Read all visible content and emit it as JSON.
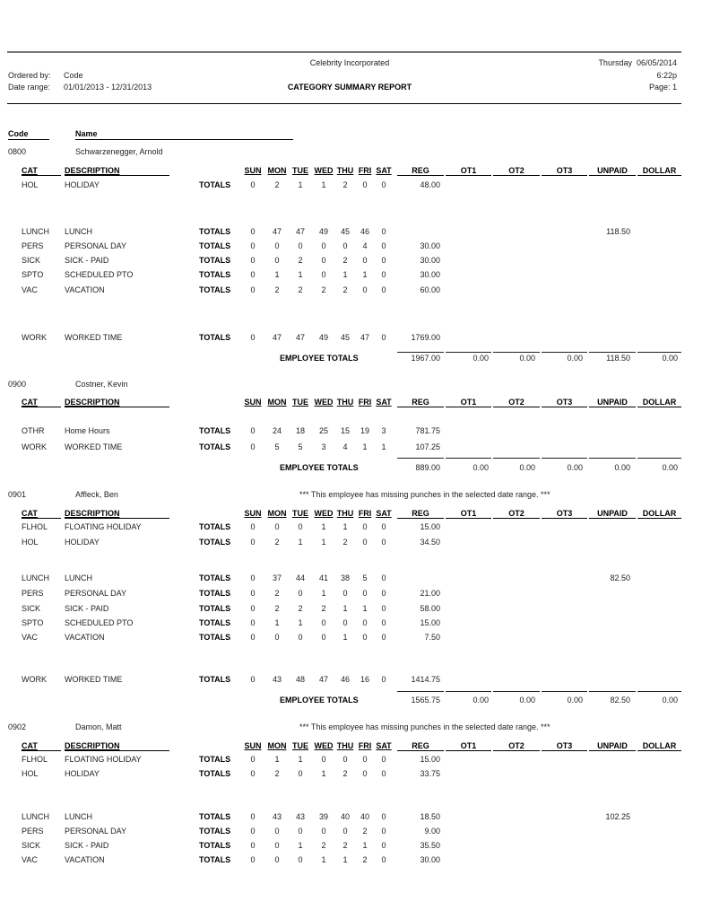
{
  "header": {
    "company": "Celebrity Incorporated",
    "report_title": "CATEGORY SUMMARY REPORT",
    "ordered_by_label": "Ordered by:",
    "ordered_by_value": "Code",
    "date_range_label": "Date range:",
    "date_range_value": "01/01/2013 - 12/31/2013",
    "day_date": "Thursday  06/05/2014",
    "time": "6:22p",
    "page": "Page: 1"
  },
  "list_headers": {
    "code": "Code",
    "name": "Name"
  },
  "columns": {
    "cat": "CAT",
    "description": "DESCRIPTION",
    "days": [
      "SUN",
      "MON",
      "TUE",
      "WED",
      "THU",
      "FRI",
      "SAT"
    ],
    "reg": "REG",
    "ot1": "OT1",
    "ot2": "OT2",
    "ot3": "OT3",
    "unpaid": "UNPAID",
    "dollar": "DOLLAR"
  },
  "totals_label": "TOTALS",
  "employee_totals_label": "EMPLOYEE TOTALS",
  "employees": [
    {
      "code": "0800",
      "name": "Schwarzenegger, Arnold",
      "note": "",
      "rows": [
        {
          "cat": "HOL",
          "desc": "HOLIDAY",
          "days": [
            "0",
            "2",
            "1",
            "1",
            "2",
            "0",
            "0"
          ],
          "reg": "48.00",
          "unpaid": ""
        },
        {
          "cat": "LUNCH",
          "desc": "LUNCH",
          "days": [
            "0",
            "47",
            "47",
            "49",
            "45",
            "46",
            "0"
          ],
          "reg": "",
          "unpaid": "118.50"
        },
        {
          "cat": "PERS",
          "desc": "PERSONAL DAY",
          "days": [
            "0",
            "0",
            "0",
            "0",
            "0",
            "4",
            "0"
          ],
          "reg": "30.00",
          "unpaid": ""
        },
        {
          "cat": "SICK",
          "desc": "SICK - PAID",
          "days": [
            "0",
            "0",
            "2",
            "0",
            "2",
            "0",
            "0"
          ],
          "reg": "30.00",
          "unpaid": ""
        },
        {
          "cat": "SPTO",
          "desc": "SCHEDULED PTO",
          "days": [
            "0",
            "1",
            "1",
            "0",
            "1",
            "1",
            "0"
          ],
          "reg": "30.00",
          "unpaid": ""
        },
        {
          "cat": "VAC",
          "desc": "VACATION",
          "days": [
            "0",
            "2",
            "2",
            "2",
            "2",
            "0",
            "0"
          ],
          "reg": "60.00",
          "unpaid": ""
        },
        {
          "cat": "WORK",
          "desc": "WORKED TIME",
          "days": [
            "0",
            "47",
            "47",
            "49",
            "45",
            "47",
            "0"
          ],
          "reg": "1769.00",
          "unpaid": ""
        }
      ],
      "totals": {
        "reg": "1967.00",
        "ot1": "0.00",
        "ot2": "0.00",
        "ot3": "0.00",
        "unpaid": "118.50",
        "dollar": "0.00"
      }
    },
    {
      "code": "0900",
      "name": "Costner, Kevin",
      "note": "",
      "rows": [
        {
          "cat": "OTHR",
          "desc": "Home Hours",
          "days": [
            "0",
            "24",
            "18",
            "25",
            "15",
            "19",
            "3"
          ],
          "reg": "781.75",
          "unpaid": ""
        },
        {
          "cat": "WORK",
          "desc": "WORKED TIME",
          "days": [
            "0",
            "5",
            "5",
            "3",
            "4",
            "1",
            "1"
          ],
          "reg": "107.25",
          "unpaid": ""
        }
      ],
      "totals": {
        "reg": "889.00",
        "ot1": "0.00",
        "ot2": "0.00",
        "ot3": "0.00",
        "unpaid": "0.00",
        "dollar": "0.00"
      }
    },
    {
      "code": "0901",
      "name": "Affleck, Ben",
      "note": "*** This employee has missing punches in the selected date range. ***",
      "rows": [
        {
          "cat": "FLHOL",
          "desc": "FLOATING HOLIDAY",
          "days": [
            "0",
            "0",
            "0",
            "1",
            "1",
            "0",
            "0"
          ],
          "reg": "15.00",
          "unpaid": ""
        },
        {
          "cat": "HOL",
          "desc": "HOLIDAY",
          "days": [
            "0",
            "2",
            "1",
            "1",
            "2",
            "0",
            "0"
          ],
          "reg": "34.50",
          "unpaid": ""
        },
        {
          "cat": "LUNCH",
          "desc": "LUNCH",
          "days": [
            "0",
            "37",
            "44",
            "41",
            "38",
            "5",
            "0"
          ],
          "reg": "",
          "unpaid": "82.50"
        },
        {
          "cat": "PERS",
          "desc": "PERSONAL DAY",
          "days": [
            "0",
            "2",
            "0",
            "1",
            "0",
            "0",
            "0"
          ],
          "reg": "21.00",
          "unpaid": ""
        },
        {
          "cat": "SICK",
          "desc": "SICK - PAID",
          "days": [
            "0",
            "2",
            "2",
            "2",
            "1",
            "1",
            "0"
          ],
          "reg": "58.00",
          "unpaid": ""
        },
        {
          "cat": "SPTO",
          "desc": "SCHEDULED PTO",
          "days": [
            "0",
            "1",
            "1",
            "0",
            "0",
            "0",
            "0"
          ],
          "reg": "15.00",
          "unpaid": ""
        },
        {
          "cat": "VAC",
          "desc": "VACATION",
          "days": [
            "0",
            "0",
            "0",
            "0",
            "1",
            "0",
            "0"
          ],
          "reg": "7.50",
          "unpaid": ""
        },
        {
          "cat": "WORK",
          "desc": "WORKED TIME",
          "days": [
            "0",
            "43",
            "48",
            "47",
            "46",
            "16",
            "0"
          ],
          "reg": "1414.75",
          "unpaid": ""
        }
      ],
      "totals": {
        "reg": "1565.75",
        "ot1": "0.00",
        "ot2": "0.00",
        "ot3": "0.00",
        "unpaid": "82.50",
        "dollar": "0.00"
      }
    },
    {
      "code": "0902",
      "name": "Damon, Matt",
      "note": "*** This employee has missing punches in the selected date range. ***",
      "rows": [
        {
          "cat": "FLHOL",
          "desc": "FLOATING HOLIDAY",
          "days": [
            "0",
            "1",
            "1",
            "0",
            "0",
            "0",
            "0"
          ],
          "reg": "15.00",
          "unpaid": ""
        },
        {
          "cat": "HOL",
          "desc": "HOLIDAY",
          "days": [
            "0",
            "2",
            "0",
            "1",
            "2",
            "0",
            "0"
          ],
          "reg": "33.75",
          "unpaid": ""
        },
        {
          "cat": "LUNCH",
          "desc": "LUNCH",
          "days": [
            "0",
            "43",
            "43",
            "39",
            "40",
            "40",
            "0"
          ],
          "reg": "18.50",
          "unpaid": "102.25"
        },
        {
          "cat": "PERS",
          "desc": "PERSONAL DAY",
          "days": [
            "0",
            "0",
            "0",
            "0",
            "0",
            "2",
            "0"
          ],
          "reg": "9.00",
          "unpaid": ""
        },
        {
          "cat": "SICK",
          "desc": "SICK - PAID",
          "days": [
            "0",
            "0",
            "1",
            "2",
            "2",
            "1",
            "0"
          ],
          "reg": "35.50",
          "unpaid": ""
        },
        {
          "cat": "VAC",
          "desc": "VACATION",
          "days": [
            "0",
            "0",
            "0",
            "1",
            "1",
            "2",
            "0"
          ],
          "reg": "30.00",
          "unpaid": ""
        }
      ],
      "totals": null
    }
  ]
}
